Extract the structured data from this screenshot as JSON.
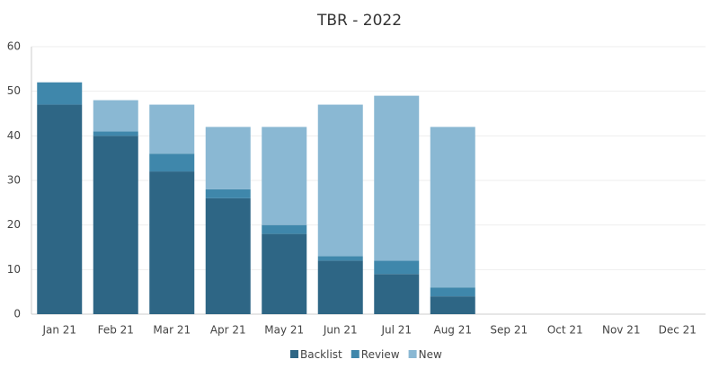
{
  "chart_data": {
    "type": "stacked_bar",
    "title": "TBR - 2022",
    "categories": [
      "Jan 21",
      "Feb 21",
      "Mar 21",
      "Apr 21",
      "May 21",
      "Jun 21",
      "Jul 21",
      "Aug 21",
      "Sep 21",
      "Oct 21",
      "Nov 21",
      "Dec 21"
    ],
    "series": [
      {
        "name": "Backlist",
        "color": "#2e6685",
        "values": [
          47,
          40,
          32,
          26,
          18,
          12,
          9,
          4,
          null,
          null,
          null,
          null
        ]
      },
      {
        "name": "Review",
        "color": "#3f87ab",
        "values": [
          5,
          1,
          4,
          2,
          2,
          1,
          3,
          2,
          null,
          null,
          null,
          null
        ]
      },
      {
        "name": "New",
        "color": "#8ab8d3",
        "values": [
          0,
          7,
          11,
          14,
          22,
          34,
          37,
          36,
          null,
          null,
          null,
          null
        ]
      }
    ],
    "ylim": [
      0,
      60
    ],
    "yticks": [
      0,
      10,
      20,
      30,
      40,
      50,
      60
    ],
    "grid": true,
    "legend": "bottom"
  }
}
